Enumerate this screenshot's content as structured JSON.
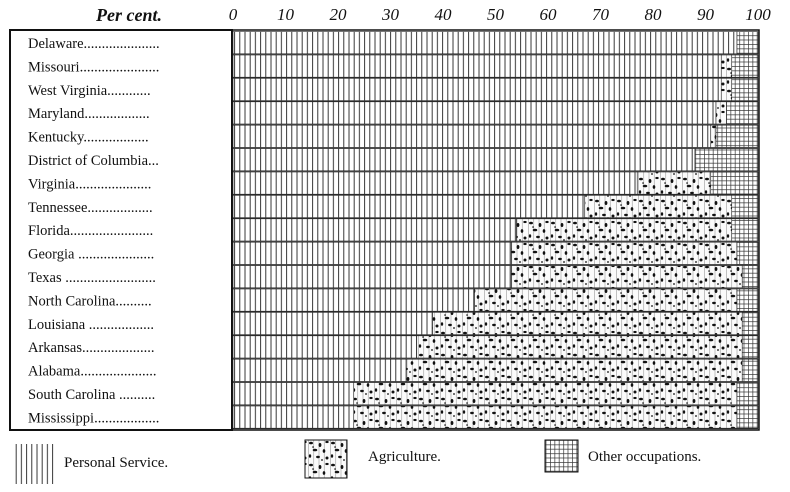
{
  "chart_data": {
    "type": "bar",
    "stacked": true,
    "orientation": "horizontal",
    "axis_title": "Per cent.",
    "ticks": [
      "0",
      "10",
      "20",
      "30",
      "40",
      "50",
      "60",
      "70",
      "80",
      "90",
      "100"
    ],
    "xlim": [
      0,
      100
    ],
    "categories": [
      "Delaware",
      "Missouri",
      "West Virginia",
      "Maryland",
      "Kentucky",
      "District of Columbia",
      "Virginia",
      "Tennessee",
      "Florida",
      "Georgia",
      "Texas",
      "North Carolina",
      "Louisiana",
      "Arkansas",
      "Alabama",
      "South Carolina",
      "Mississippi"
    ],
    "category_labels": [
      "Delaware.....................",
      "Missouri......................",
      "West Virginia............",
      "Maryland..................",
      "Kentucky..................",
      "District of Columbia...",
      "Virginia.....................",
      "Tennessee..................",
      "Florida.......................",
      "Georgia .....................",
      "Texas .........................",
      "North Carolina..........",
      "Louisiana ..................",
      "Arkansas....................",
      "Alabama.....................",
      "South Carolina ..........",
      "Mississippi.................."
    ],
    "series": [
      {
        "name": "Personal Service.",
        "values": [
          96,
          93,
          93,
          92,
          91,
          88,
          77,
          67,
          54,
          53,
          53,
          46,
          38,
          35,
          33,
          23,
          23
        ]
      },
      {
        "name": "Agriculture.",
        "values": [
          0,
          2,
          2,
          2,
          1,
          0,
          14,
          28,
          41,
          43,
          44,
          50,
          59,
          62,
          64,
          73,
          73
        ]
      },
      {
        "name": "Other occupations.",
        "values": [
          4,
          5,
          5,
          6,
          8,
          12,
          9,
          5,
          5,
          4,
          3,
          4,
          3,
          3,
          3,
          4,
          4
        ]
      }
    ],
    "legend_position": "bottom",
    "grid": true
  }
}
